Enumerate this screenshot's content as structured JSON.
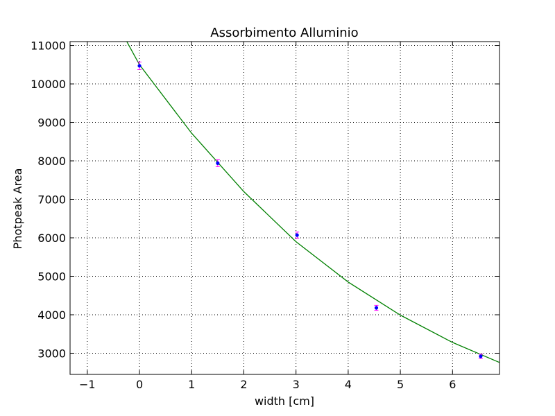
{
  "chart_data": {
    "type": "scatter",
    "title": "Assorbimento Alluminio",
    "xlabel": "width [cm]",
    "ylabel": "Photpeak Area",
    "xlim": [
      -1.33,
      6.9
    ],
    "ylim": [
      2450,
      11100
    ],
    "x_ticks": [
      -1,
      0,
      1,
      2,
      3,
      4,
      5,
      6
    ],
    "y_ticks": [
      3000,
      4000,
      5000,
      6000,
      7000,
      8000,
      9000,
      10000,
      11000
    ],
    "grid": true,
    "series": [
      {
        "kind": "points-with-errorbars",
        "color": "#0000ff",
        "errorbar_color": "#ff00ff",
        "points": [
          {
            "x": 0.0,
            "y": 10470,
            "err": 100
          },
          {
            "x": 1.5,
            "y": 7940,
            "err": 90
          },
          {
            "x": 3.02,
            "y": 6070,
            "err": 80
          },
          {
            "x": 4.54,
            "y": 4180,
            "err": 65
          },
          {
            "x": 6.54,
            "y": 2920,
            "err": 55
          }
        ]
      },
      {
        "kind": "fit-curve",
        "color": "#008000",
        "model": "exponential",
        "x_range": [
          -0.25,
          6.9
        ],
        "samples": [
          {
            "x": -0.25,
            "y": 11120
          },
          {
            "x": 0.0,
            "y": 10500
          },
          {
            "x": 1.0,
            "y": 8720
          },
          {
            "x": 2.0,
            "y": 7200
          },
          {
            "x": 3.0,
            "y": 5900
          },
          {
            "x": 4.0,
            "y": 4850
          },
          {
            "x": 5.0,
            "y": 3990
          },
          {
            "x": 6.0,
            "y": 3280
          },
          {
            "x": 6.9,
            "y": 2760
          }
        ]
      }
    ]
  }
}
